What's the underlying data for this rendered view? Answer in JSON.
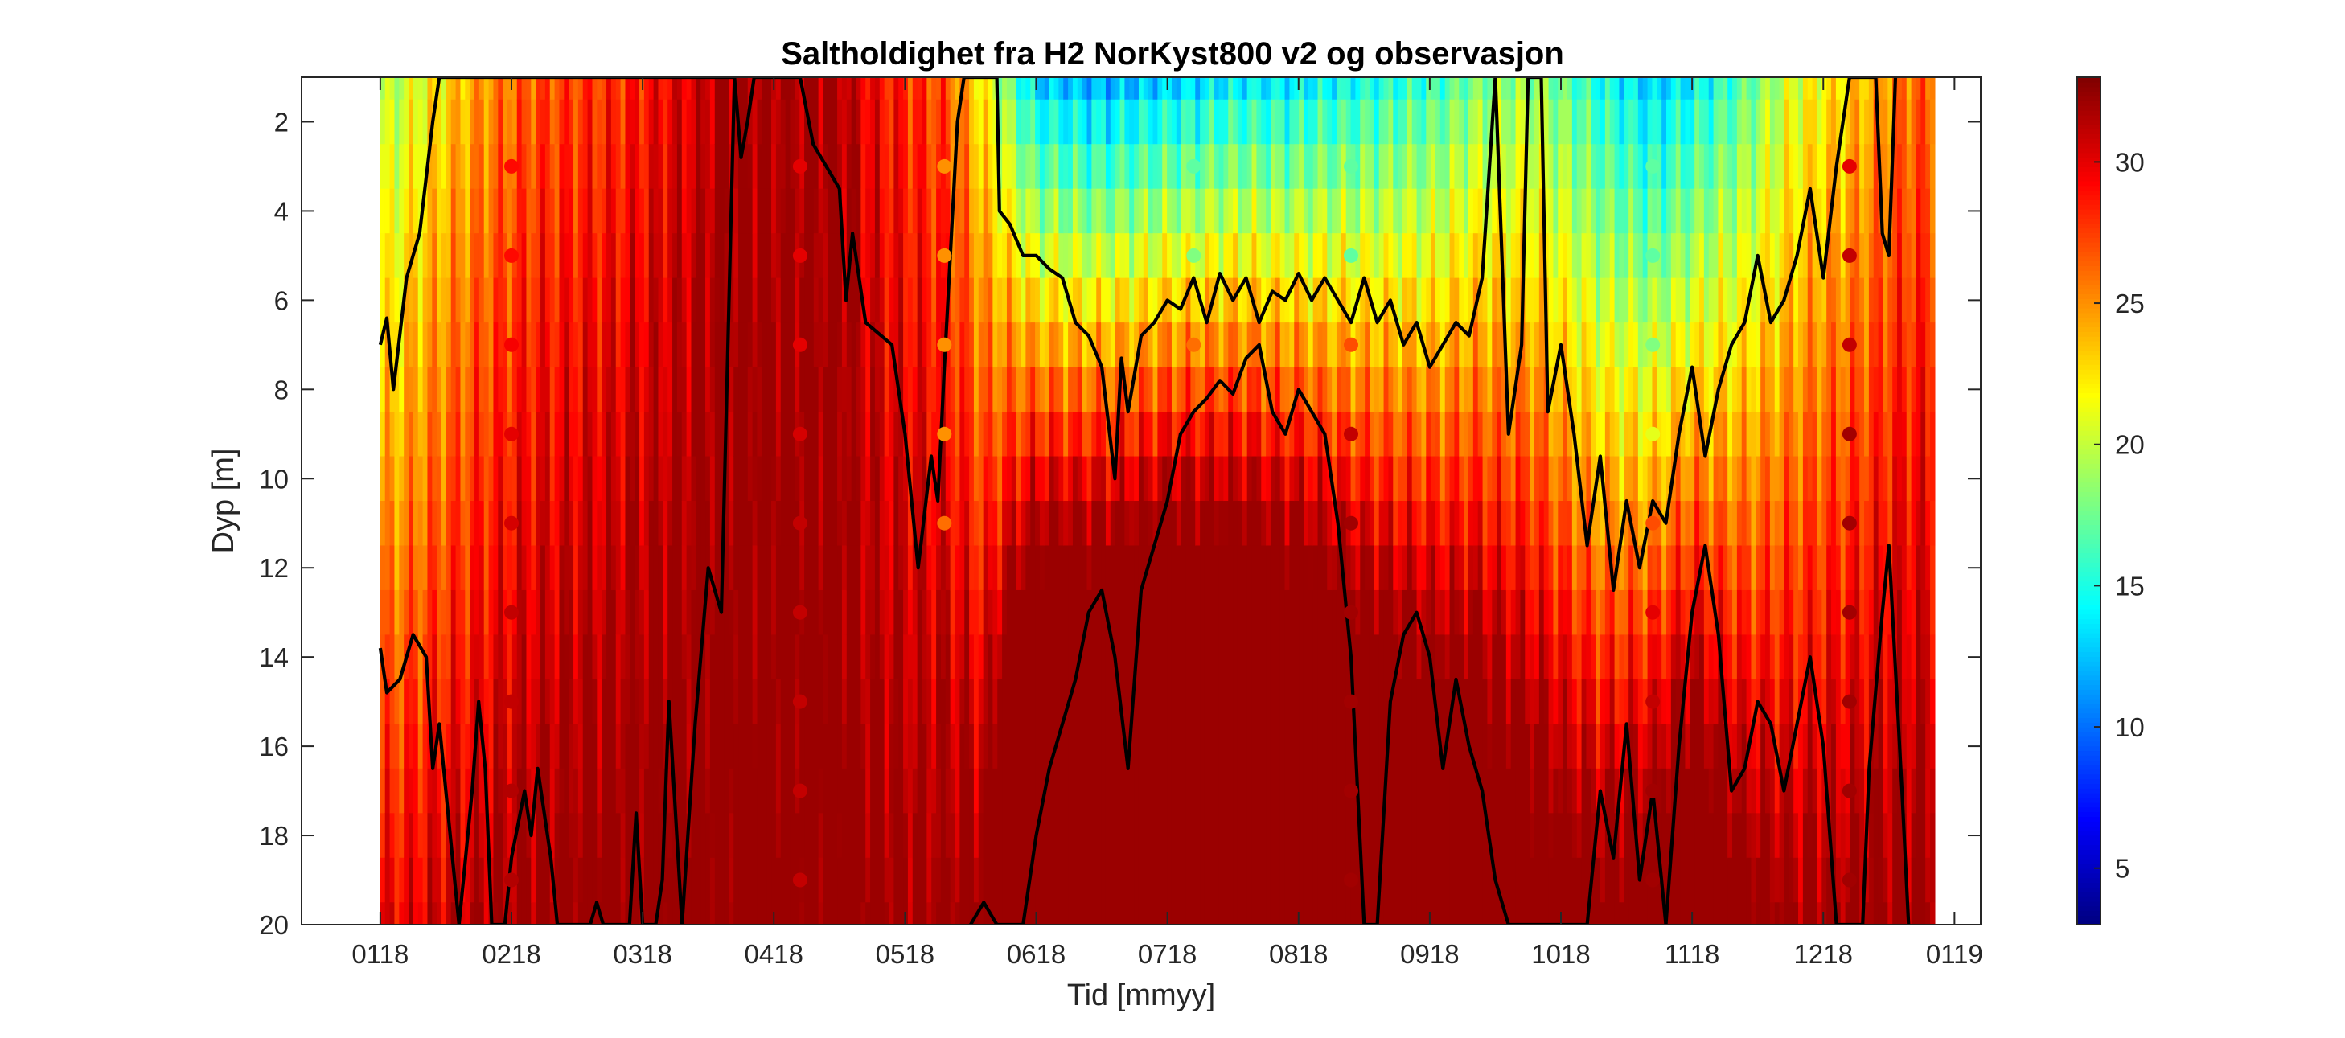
{
  "chart_data": {
    "type": "heatmap",
    "title": "Saltholdighet fra H2 NorKyst800 v2 og observasjon",
    "xlabel": "Tid [mmyy]",
    "ylabel": "Dyp [m]",
    "x_ticks": [
      "0118",
      "0218",
      "0318",
      "0418",
      "0518",
      "0618",
      "0718",
      "0818",
      "0918",
      "1018",
      "1118",
      "1218",
      "0119"
    ],
    "y_ticks": [
      "2",
      "4",
      "6",
      "8",
      "10",
      "12",
      "14",
      "16",
      "18",
      "20"
    ],
    "y_range": [
      1,
      20
    ],
    "y_reversed": true,
    "colorbar": {
      "colormap": "jet",
      "range": [
        3,
        33
      ],
      "ticks": [
        "5",
        "10",
        "15",
        "20",
        "25",
        "30"
      ]
    },
    "model_depths_m": [
      1,
      2,
      3,
      4,
      5,
      6,
      7,
      8,
      9,
      10,
      11,
      12,
      13,
      14,
      15,
      16,
      17,
      18,
      19,
      20
    ],
    "surface_salinity_profile": [
      {
        "month": 1.0,
        "s1": 19,
        "grad": 0.55
      },
      {
        "month": 1.4,
        "s1": 22,
        "grad": 0.45
      },
      {
        "month": 1.8,
        "s1": 25,
        "grad": 0.35
      },
      {
        "month": 2.2,
        "s1": 27,
        "grad": 0.3
      },
      {
        "month": 2.8,
        "s1": 28,
        "grad": 0.3
      },
      {
        "month": 3.3,
        "s1": 30,
        "grad": 0.2
      },
      {
        "month": 3.6,
        "s1": 32,
        "grad": 0.1
      },
      {
        "month": 4.5,
        "s1": 32,
        "grad": 0.1
      },
      {
        "month": 4.8,
        "s1": 29,
        "grad": 0.2
      },
      {
        "month": 5.3,
        "s1": 27,
        "grad": 0.3
      },
      {
        "month": 5.6,
        "s1": 22,
        "grad": 0.6
      },
      {
        "month": 6.0,
        "s1": 13,
        "grad": 1.9
      },
      {
        "month": 6.5,
        "s1": 12,
        "grad": 2.0
      },
      {
        "month": 7.0,
        "s1": 13,
        "grad": 2.0
      },
      {
        "month": 7.5,
        "s1": 14,
        "grad": 1.9
      },
      {
        "month": 8.0,
        "s1": 14,
        "grad": 1.8
      },
      {
        "month": 8.5,
        "s1": 15,
        "grad": 1.5
      },
      {
        "month": 9.0,
        "s1": 16,
        "grad": 1.3
      },
      {
        "month": 9.4,
        "s1": 18,
        "grad": 1.1
      },
      {
        "month": 9.8,
        "s1": 19,
        "grad": 0.9
      },
      {
        "month": 10.3,
        "s1": 15,
        "grad": 1.0
      },
      {
        "month": 10.7,
        "s1": 13,
        "grad": 1.2
      },
      {
        "month": 11.0,
        "s1": 14,
        "grad": 1.3
      },
      {
        "month": 11.4,
        "s1": 17,
        "grad": 0.9
      },
      {
        "month": 11.8,
        "s1": 21,
        "grad": 0.6
      },
      {
        "month": 12.2,
        "s1": 23,
        "grad": 0.5
      },
      {
        "month": 12.6,
        "s1": 26,
        "grad": 0.35
      },
      {
        "month": 13.0,
        "s1": 27,
        "grad": 0.3
      }
    ],
    "observation_profiles": [
      {
        "month": 2.0,
        "depths": [
          3,
          5,
          7,
          9,
          11,
          13,
          15,
          17,
          19
        ],
        "salinity": [
          29,
          29,
          29.5,
          30,
          30.5,
          31,
          31,
          31.5,
          31.5
        ]
      },
      {
        "month": 4.2,
        "depths": [
          3,
          5,
          7,
          9,
          11,
          13,
          15,
          17,
          19
        ],
        "salinity": [
          30,
          30,
          30,
          30.5,
          31,
          31,
          31,
          31,
          31
        ]
      },
      {
        "month": 5.3,
        "depths": [
          3,
          5,
          7,
          9,
          11
        ],
        "salinity": [
          25,
          25,
          25,
          25,
          26
        ]
      },
      {
        "month": 7.2,
        "depths": [
          3,
          5,
          7
        ],
        "salinity": [
          17,
          18,
          26
        ]
      },
      {
        "month": 8.4,
        "depths": [
          3,
          5,
          7,
          9,
          11,
          13,
          15,
          17,
          19
        ],
        "salinity": [
          17,
          17,
          27,
          31,
          32,
          32,
          32,
          32,
          32
        ]
      },
      {
        "month": 10.7,
        "depths": [
          3,
          5,
          7,
          9,
          11,
          13,
          15,
          17,
          19
        ],
        "salinity": [
          17,
          17,
          18,
          21,
          27,
          30,
          31,
          32,
          32
        ]
      },
      {
        "month": 12.2,
        "depths": [
          3,
          5,
          7,
          9,
          11,
          13,
          15,
          17,
          19
        ],
        "salinity": [
          30,
          31,
          31,
          32,
          32,
          32,
          32,
          32,
          32
        ]
      }
    ],
    "isohaline_upper_depth_m": [
      [
        1.0,
        7.0
      ],
      [
        1.05,
        6.4
      ],
      [
        1.1,
        8.0
      ],
      [
        1.2,
        5.5
      ],
      [
        1.3,
        4.5
      ],
      [
        1.4,
        2.0
      ],
      [
        1.45,
        1.0
      ],
      [
        3.7,
        1.0
      ],
      [
        3.75,
        2.8
      ],
      [
        3.8,
        2.0
      ],
      [
        3.85,
        1.0
      ],
      [
        4.2,
        1.0
      ],
      [
        4.3,
        2.5
      ],
      [
        4.5,
        3.5
      ],
      [
        4.55,
        6.0
      ],
      [
        4.6,
        4.5
      ],
      [
        4.7,
        6.5
      ],
      [
        4.9,
        7.0
      ],
      [
        5.0,
        9.0
      ],
      [
        5.1,
        12.0
      ],
      [
        5.2,
        9.5
      ],
      [
        5.25,
        10.5
      ],
      [
        5.3,
        7.5
      ],
      [
        5.4,
        2.0
      ],
      [
        5.45,
        1.0
      ],
      [
        5.7,
        1.0
      ],
      [
        5.72,
        4.0
      ],
      [
        5.8,
        4.3
      ],
      [
        5.9,
        5.0
      ],
      [
        6.0,
        5.0
      ],
      [
        6.1,
        5.3
      ],
      [
        6.2,
        5.5
      ],
      [
        6.3,
        6.5
      ],
      [
        6.4,
        6.8
      ],
      [
        6.5,
        7.5
      ],
      [
        6.6,
        10.0
      ],
      [
        6.65,
        7.3
      ],
      [
        6.7,
        8.5
      ],
      [
        6.8,
        6.8
      ],
      [
        6.9,
        6.5
      ],
      [
        7.0,
        6.0
      ],
      [
        7.1,
        6.2
      ],
      [
        7.2,
        5.5
      ],
      [
        7.3,
        6.5
      ],
      [
        7.4,
        5.4
      ],
      [
        7.5,
        6.0
      ],
      [
        7.6,
        5.5
      ],
      [
        7.7,
        6.5
      ],
      [
        7.8,
        5.8
      ],
      [
        7.9,
        6.0
      ],
      [
        8.0,
        5.4
      ],
      [
        8.1,
        6.0
      ],
      [
        8.2,
        5.5
      ],
      [
        8.3,
        6.0
      ],
      [
        8.4,
        6.5
      ],
      [
        8.5,
        5.5
      ],
      [
        8.6,
        6.5
      ],
      [
        8.7,
        6.0
      ],
      [
        8.8,
        7.0
      ],
      [
        8.9,
        6.5
      ],
      [
        9.0,
        7.5
      ],
      [
        9.1,
        7.0
      ],
      [
        9.2,
        6.5
      ],
      [
        9.3,
        6.8
      ],
      [
        9.4,
        5.5
      ],
      [
        9.5,
        1.0
      ],
      [
        9.6,
        9.0
      ],
      [
        9.7,
        7.0
      ],
      [
        9.75,
        1.0
      ],
      [
        9.85,
        1.0
      ],
      [
        9.9,
        8.5
      ],
      [
        10.0,
        7.0
      ],
      [
        10.1,
        9.0
      ],
      [
        10.2,
        11.5
      ],
      [
        10.3,
        9.5
      ],
      [
        10.4,
        12.5
      ],
      [
        10.5,
        10.5
      ],
      [
        10.6,
        12.0
      ],
      [
        10.7,
        10.5
      ],
      [
        10.8,
        11.0
      ],
      [
        10.9,
        9.0
      ],
      [
        11.0,
        7.5
      ],
      [
        11.1,
        9.5
      ],
      [
        11.2,
        8.0
      ],
      [
        11.3,
        7.0
      ],
      [
        11.4,
        6.5
      ],
      [
        11.5,
        5.0
      ],
      [
        11.6,
        6.5
      ],
      [
        11.7,
        6.0
      ],
      [
        11.8,
        5.0
      ],
      [
        11.9,
        3.5
      ],
      [
        12.0,
        5.5
      ],
      [
        12.1,
        3.0
      ],
      [
        12.2,
        1.0
      ],
      [
        12.4,
        1.0
      ],
      [
        12.45,
        4.5
      ],
      [
        12.5,
        5.0
      ],
      [
        12.55,
        1.0
      ]
    ],
    "isohaline_lower_depth_m": [
      [
        1.0,
        13.8
      ],
      [
        1.05,
        14.8
      ],
      [
        1.15,
        14.5
      ],
      [
        1.25,
        13.5
      ],
      [
        1.35,
        14.0
      ],
      [
        1.4,
        16.5
      ],
      [
        1.45,
        15.5
      ],
      [
        1.5,
        17.0
      ],
      [
        1.6,
        20.0
      ],
      [
        1.7,
        17.0
      ],
      [
        1.75,
        15.0
      ],
      [
        1.8,
        16.5
      ],
      [
        1.85,
        20.0
      ],
      [
        1.95,
        20.0
      ],
      [
        2.0,
        18.5
      ],
      [
        2.1,
        17.0
      ],
      [
        2.15,
        18.0
      ],
      [
        2.2,
        16.5
      ],
      [
        2.3,
        18.5
      ],
      [
        2.35,
        20.0
      ],
      [
        2.6,
        20.0
      ],
      [
        2.65,
        19.5
      ],
      [
        2.7,
        20.0
      ],
      [
        2.9,
        20.0
      ],
      [
        2.95,
        17.5
      ],
      [
        3.0,
        20.0
      ],
      [
        3.1,
        20.0
      ],
      [
        3.15,
        19.0
      ],
      [
        3.2,
        15.0
      ],
      [
        3.3,
        20.0
      ],
      [
        3.4,
        15.5
      ],
      [
        3.5,
        12.0
      ],
      [
        3.6,
        13.0
      ],
      [
        3.7,
        1.0
      ]
    ],
    "isohaline_deep_depth_m": [
      [
        5.5,
        20.0
      ],
      [
        5.6,
        19.5
      ],
      [
        5.7,
        20.0
      ],
      [
        5.9,
        20.0
      ],
      [
        6.0,
        18.0
      ],
      [
        6.1,
        16.5
      ],
      [
        6.2,
        15.5
      ],
      [
        6.3,
        14.5
      ],
      [
        6.4,
        13.0
      ],
      [
        6.5,
        12.5
      ],
      [
        6.6,
        14.0
      ],
      [
        6.7,
        16.5
      ],
      [
        6.8,
        12.5
      ],
      [
        6.9,
        11.5
      ],
      [
        7.0,
        10.5
      ],
      [
        7.1,
        9.0
      ],
      [
        7.2,
        8.5
      ],
      [
        7.3,
        8.2
      ],
      [
        7.4,
        7.8
      ],
      [
        7.5,
        8.1
      ],
      [
        7.6,
        7.3
      ],
      [
        7.7,
        7.0
      ],
      [
        7.8,
        8.5
      ],
      [
        7.9,
        9.0
      ],
      [
        8.0,
        8.0
      ],
      [
        8.1,
        8.5
      ],
      [
        8.2,
        9.0
      ],
      [
        8.3,
        11.0
      ],
      [
        8.4,
        14.0
      ],
      [
        8.5,
        20.0
      ],
      [
        8.6,
        20.0
      ],
      [
        8.7,
        15.0
      ],
      [
        8.8,
        13.5
      ],
      [
        8.9,
        13.0
      ],
      [
        9.0,
        14.0
      ],
      [
        9.1,
        16.5
      ],
      [
        9.2,
        14.5
      ],
      [
        9.3,
        16.0
      ],
      [
        9.4,
        17.0
      ],
      [
        9.5,
        19.0
      ],
      [
        9.6,
        20.0
      ],
      [
        10.2,
        20.0
      ],
      [
        10.3,
        17.0
      ],
      [
        10.4,
        18.5
      ],
      [
        10.5,
        15.5
      ],
      [
        10.6,
        19.0
      ],
      [
        10.7,
        17.0
      ],
      [
        10.8,
        20.0
      ],
      [
        10.9,
        16.0
      ],
      [
        11.0,
        13.0
      ],
      [
        11.1,
        11.5
      ],
      [
        11.2,
        13.5
      ],
      [
        11.3,
        17.0
      ],
      [
        11.4,
        16.5
      ],
      [
        11.5,
        15.0
      ],
      [
        11.6,
        15.5
      ],
      [
        11.7,
        17.0
      ],
      [
        11.8,
        15.5
      ],
      [
        11.9,
        14.0
      ],
      [
        12.0,
        16.0
      ],
      [
        12.1,
        20.0
      ],
      [
        12.3,
        20.0
      ],
      [
        12.35,
        16.5
      ],
      [
        12.45,
        13.0
      ],
      [
        12.5,
        11.5
      ],
      [
        12.6,
        17.0
      ],
      [
        12.65,
        20.0
      ]
    ],
    "colors": {
      "contour": "#000000",
      "axis": "#262626"
    }
  }
}
